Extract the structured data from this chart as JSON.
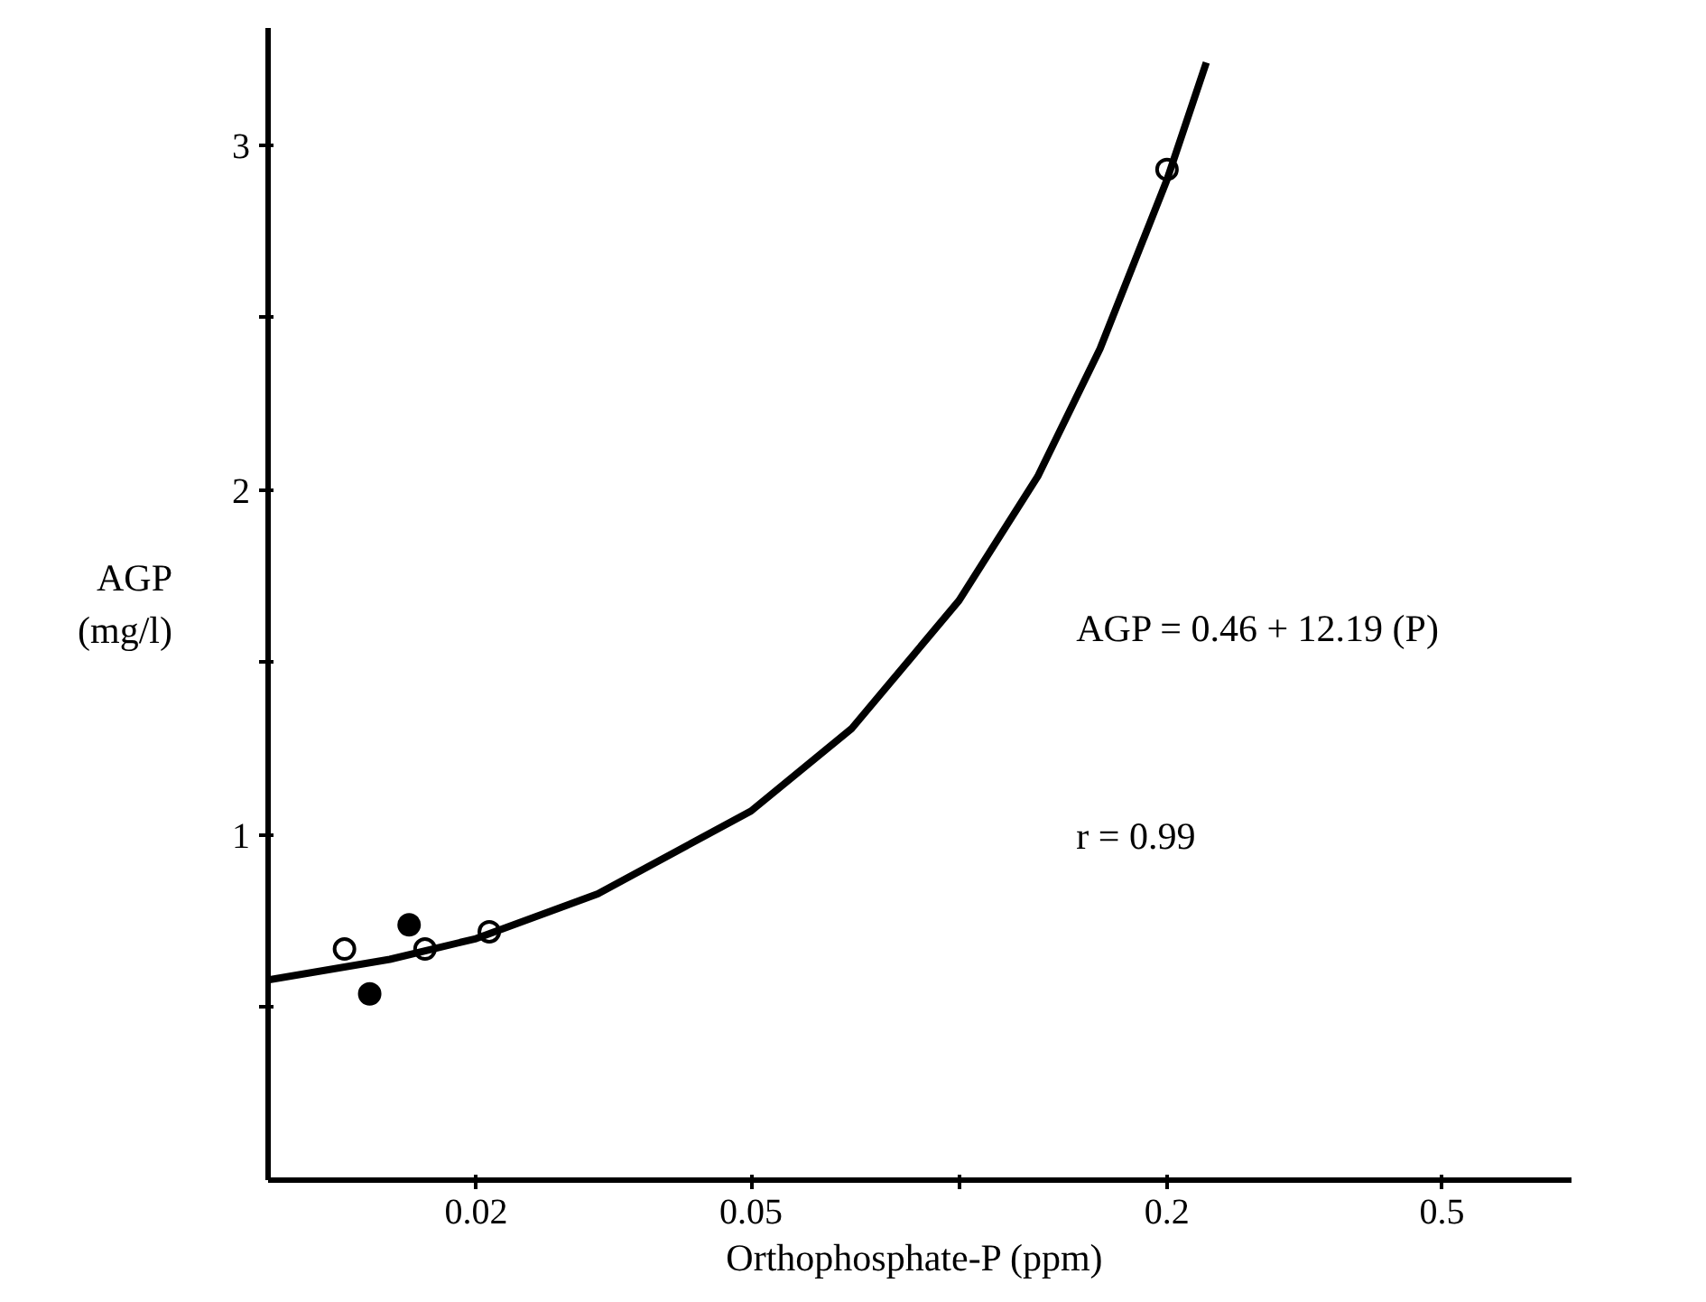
{
  "chart_data": {
    "type": "scatter",
    "xlabel": "Orthophosphate-P  (ppm)",
    "ylabel": "AGP\n(mg/l)",
    "log": "x",
    "xlim": [
      0.01,
      0.77
    ],
    "ylim": [
      0,
      3.34
    ],
    "xticks": [
      0.02,
      0.05,
      {
        "value": 0.1,
        "label": null
      },
      0.2,
      0.5
    ],
    "yticks": [
      {
        "value": 0.5,
        "label": null
      },
      1,
      {
        "value": 1.5,
        "label": null
      },
      2,
      {
        "value": 2.5,
        "label": null
      },
      3
    ],
    "grid": false,
    "marker": "circle",
    "series": [
      {
        "color": "#ffffff",
        "x": [
          0.0129,
          0.01687,
          0.0209,
          0.2
        ],
        "values": [
          0.67,
          0.67,
          0.72,
          2.93
        ]
      },
      {
        "color": "#000000",
        "x": [
          0.01403,
          0.016
        ],
        "values": [
          0.54,
          0.74
        ]
      },
      {
        "type": "line",
        "marker": "none",
        "color": "#000000",
        "x": [
          0.01,
          0.015,
          0.02,
          0.03,
          0.05,
          0.07,
          0.1,
          0.13,
          0.16,
          0.2,
          0.228
        ],
        "values": [
          0.58,
          0.64,
          0.7,
          0.83,
          1.07,
          1.31,
          1.68,
          2.04,
          2.41,
          2.9,
          3.24
        ]
      }
    ],
    "annotations": [
      "AGP = 0.46 + 12.19 (P)",
      "r = 0.99"
    ]
  }
}
